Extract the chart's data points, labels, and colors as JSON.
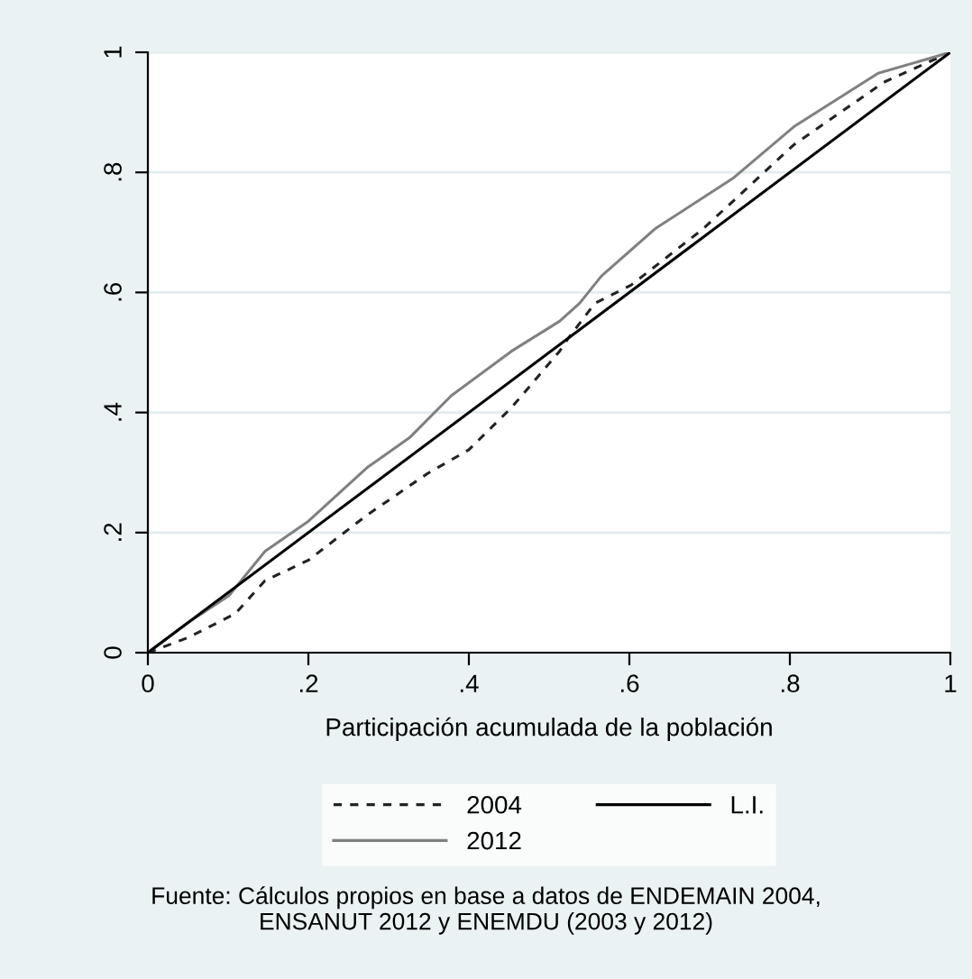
{
  "chart_data": {
    "type": "line",
    "xlabel": "Participación acumulada de la población",
    "xlim": [
      0,
      1
    ],
    "ylim": [
      0,
      1
    ],
    "xticks": [
      0,
      {
        "value": 0.2,
        "label": ".2"
      },
      {
        "value": 0.4,
        "label": ".4"
      },
      {
        "value": 0.6,
        "label": ".6"
      },
      {
        "value": 0.8,
        "label": ".8"
      },
      1
    ],
    "yticks": [
      0,
      {
        "value": 0.2,
        "label": ".2"
      },
      {
        "value": 0.4,
        "label": ".4"
      },
      {
        "value": 0.6,
        "label": ".6"
      },
      {
        "value": 0.8,
        "label": ".8"
      },
      1
    ],
    "grid": "y",
    "legend": "bottom",
    "series": [
      {
        "name": "2004",
        "color": "#222222",
        "line_style": "dashed",
        "x": [
          0,
          0.05,
          0.109,
          0.146,
          0.2,
          0.273,
          0.348,
          0.4,
          0.453,
          0.513,
          0.523,
          0.557,
          0.602,
          0.692,
          0.805,
          0.917,
          1
        ],
        "values": [
          0,
          0.025,
          0.065,
          0.12,
          0.154,
          0.229,
          0.298,
          0.338,
          0.408,
          0.502,
          0.522,
          0.582,
          0.612,
          0.706,
          0.846,
          0.95,
          1
        ]
      },
      {
        "name": "2012",
        "color": "#808080",
        "line_style": "solid",
        "x": [
          0,
          0.05,
          0.101,
          0.146,
          0.2,
          0.273,
          0.326,
          0.378,
          0.453,
          0.513,
          0.538,
          0.565,
          0.632,
          0.73,
          0.805,
          0.91,
          1
        ],
        "values": [
          0,
          0.05,
          0.095,
          0.169,
          0.219,
          0.308,
          0.358,
          0.428,
          0.502,
          0.552,
          0.582,
          0.627,
          0.706,
          0.791,
          0.876,
          0.965,
          1
        ]
      },
      {
        "name": "L.I.",
        "color": "#000000",
        "line_style": "solid",
        "x": [
          0,
          1
        ],
        "values": [
          0,
          1
        ]
      }
    ],
    "annotations": [
      "Fuente: Cálculos propios en base a datos de ENDEMAIN 2004,\nENSANUT 2012 y ENEMDU (2003 y 2012)"
    ]
  }
}
